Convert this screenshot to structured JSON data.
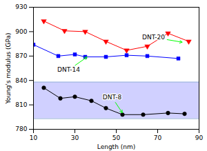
{
  "chart_data": {
    "type": "line",
    "title": "",
    "xlabel": "Length (nm)",
    "ylabel": "Young's modulus (GPa)",
    "xlim": [
      10,
      90
    ],
    "ylim": [
      780,
      930
    ],
    "xticks": [
      10,
      30,
      50,
      70,
      90
    ],
    "yticks": [
      780,
      810,
      840,
      870,
      900,
      930
    ],
    "grid": false,
    "band": {
      "ymin": 793,
      "ymax": 838,
      "color": "#d0d0ff",
      "edge_color": "#88aacc"
    },
    "series": [
      {
        "x": [
          15,
          25,
          35,
          45,
          55,
          65,
          75,
          85
        ],
        "values": [
          913,
          901,
          900,
          888,
          877,
          882,
          898,
          888
        ],
        "color": "red",
        "marker": "triangle_down"
      },
      {
        "x": [
          10,
          22,
          30,
          35,
          45,
          55,
          65,
          80
        ],
        "values": [
          884,
          870,
          872,
          869,
          869,
          871,
          870,
          867
        ],
        "color": "blue",
        "marker": "square"
      },
      {
        "x": [
          15,
          23,
          30,
          38,
          45,
          53,
          63,
          75,
          83
        ],
        "values": [
          831,
          818,
          820,
          815,
          806,
          798,
          798,
          800,
          799
        ],
        "color": "black",
        "marker": "circle"
      }
    ],
    "annotations": [
      {
        "text": "DNT-20",
        "x": 68,
        "y": 893,
        "arrow_x": 82,
        "arrow_y": 887,
        "color": "lime"
      },
      {
        "text": "DNT-14",
        "x": 27,
        "y": 853,
        "arrow_x": 36,
        "arrow_y": 869,
        "color": "lime"
      },
      {
        "text": "DNT-8",
        "x": 48,
        "y": 819,
        "arrow_x": 53,
        "arrow_y": 800,
        "color": "lime"
      }
    ]
  }
}
